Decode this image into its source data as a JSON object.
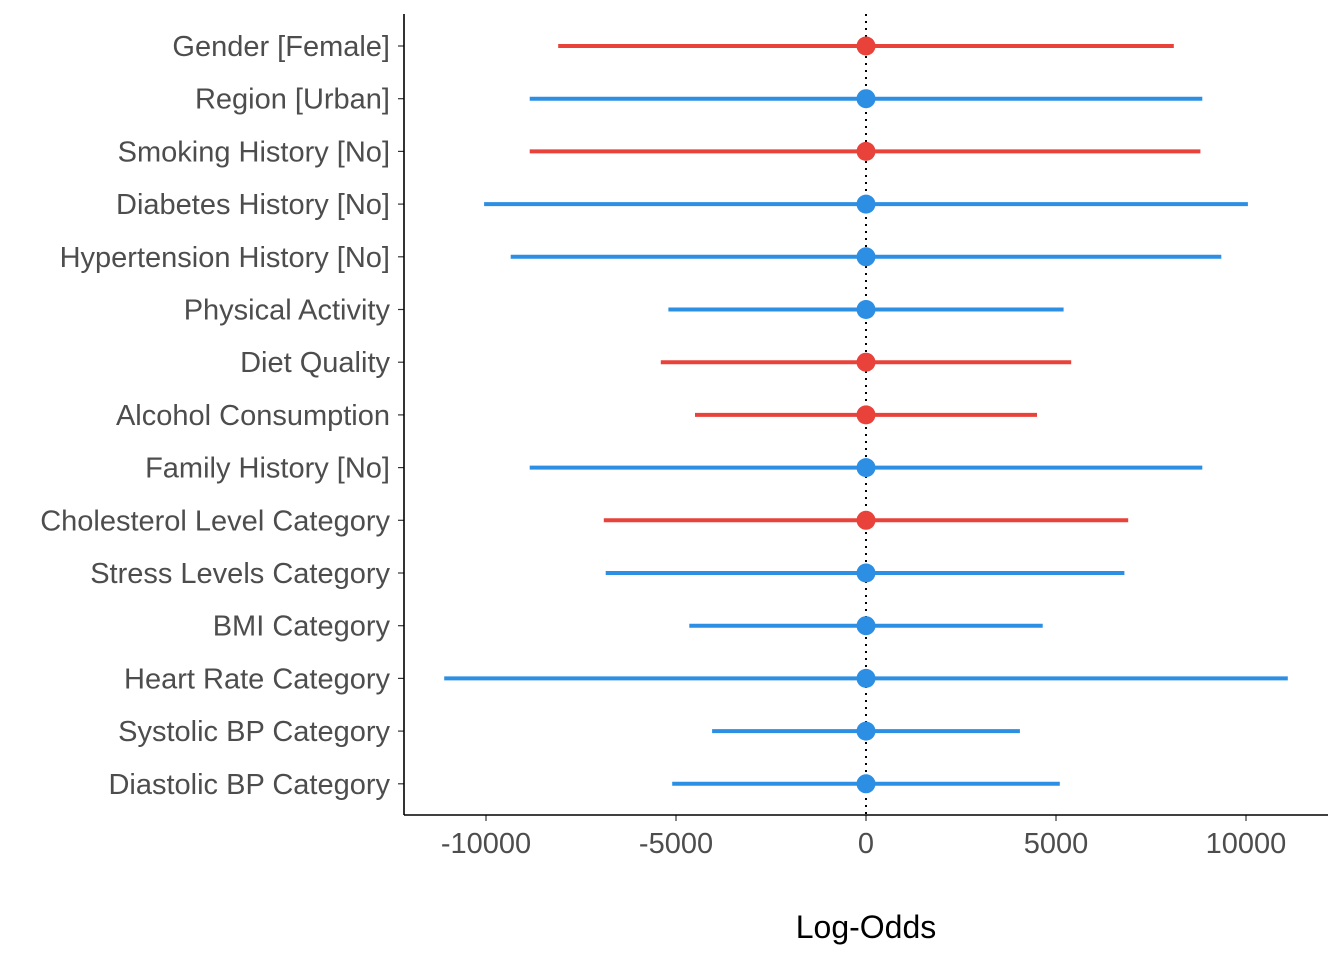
{
  "chart_data": {
    "type": "forest",
    "title": "",
    "xlabel": "Log-Odds",
    "ylabel": "",
    "xlim": [
      -12200,
      12200
    ],
    "xticks": [
      -10000,
      -5000,
      0,
      5000,
      10000
    ],
    "xtick_labels": [
      "-10000",
      "-5000",
      "0",
      "5000",
      "10000"
    ],
    "reference_line": 0,
    "grid": false,
    "colors": {
      "positive": "#E8423A",
      "negative": "#2C8FE3",
      "axis": "#000000"
    },
    "terms": [
      {
        "label": "Gender [Female]",
        "estimate": 0,
        "lower": -8100,
        "upper": 8100,
        "color": "positive"
      },
      {
        "label": "Region [Urban]",
        "estimate": 0,
        "lower": -8850,
        "upper": 8850,
        "color": "negative"
      },
      {
        "label": "Smoking History [No]",
        "estimate": 0,
        "lower": -8850,
        "upper": 8800,
        "color": "positive"
      },
      {
        "label": "Diabetes History [No]",
        "estimate": 0,
        "lower": -10050,
        "upper": 10050,
        "color": "negative"
      },
      {
        "label": "Hypertension History [No]",
        "estimate": 0,
        "lower": -9350,
        "upper": 9350,
        "color": "negative"
      },
      {
        "label": "Physical Activity",
        "estimate": 0,
        "lower": -5200,
        "upper": 5200,
        "color": "negative"
      },
      {
        "label": "Diet Quality",
        "estimate": 0,
        "lower": -5400,
        "upper": 5400,
        "color": "positive"
      },
      {
        "label": "Alcohol Consumption",
        "estimate": 0,
        "lower": -4500,
        "upper": 4500,
        "color": "positive"
      },
      {
        "label": "Family History [No]",
        "estimate": 0,
        "lower": -8850,
        "upper": 8850,
        "color": "negative"
      },
      {
        "label": "Cholesterol Level Category",
        "estimate": 0,
        "lower": -6900,
        "upper": 6900,
        "color": "positive"
      },
      {
        "label": "Stress Levels Category",
        "estimate": 0,
        "lower": -6850,
        "upper": 6800,
        "color": "negative"
      },
      {
        "label": "BMI Category",
        "estimate": 0,
        "lower": -4650,
        "upper": 4650,
        "color": "negative"
      },
      {
        "label": "Heart Rate Category",
        "estimate": 0,
        "lower": -11100,
        "upper": 11100,
        "color": "negative"
      },
      {
        "label": "Systolic BP Category",
        "estimate": 0,
        "lower": -4050,
        "upper": 4050,
        "color": "negative"
      },
      {
        "label": "Diastolic BP Category",
        "estimate": 0,
        "lower": -5100,
        "upper": 5100,
        "color": "negative"
      }
    ]
  }
}
